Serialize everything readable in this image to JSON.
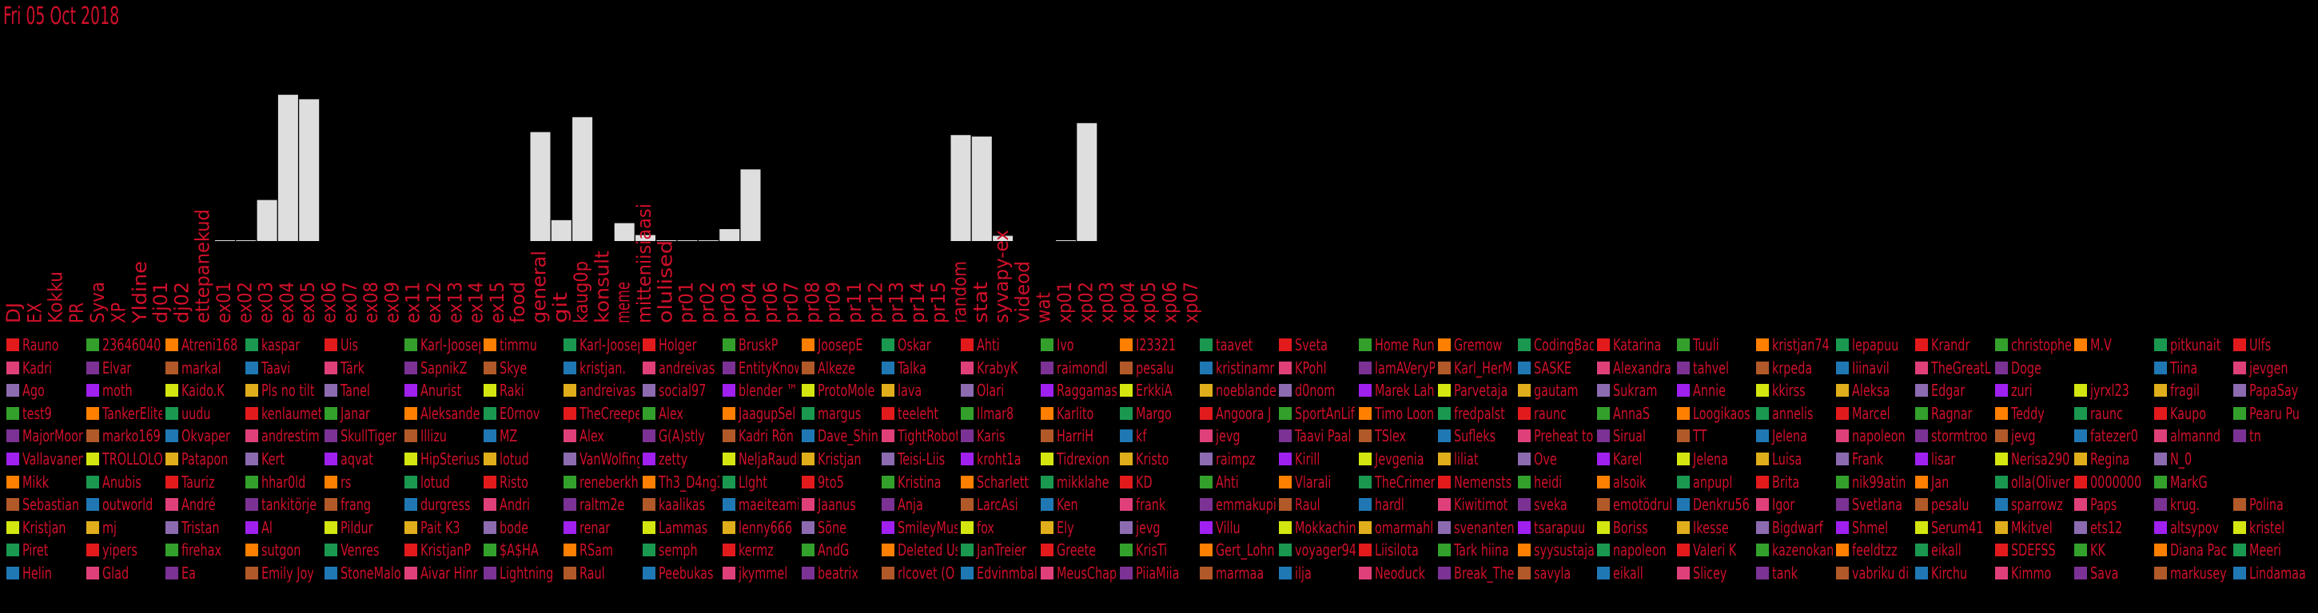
{
  "date_label": "Fri 05 Oct 2018",
  "colors": {
    "background": "#000000",
    "bars": "#dedede",
    "text": "#d0102a",
    "legend_swatches": [
      "#e31a1c",
      "#a020f0",
      "#1f78b4",
      "#33a02c",
      "#d4e610",
      "#e0407a",
      "#ff7f00",
      "#e0ae1b",
      "#7b3294",
      "#1a9850",
      "#8c6bb1",
      "#b15928"
    ]
  },
  "chart_data": {
    "type": "bar",
    "categories": [
      "DJ",
      "EX",
      "Kokku",
      "PR",
      "Syva",
      "XP",
      "Yldine",
      "dj01",
      "dj02",
      "ettepanekud",
      "ex01",
      "ex02",
      "ex03",
      "ex04",
      "ex05",
      "ex06",
      "ex07",
      "ex08",
      "ex09",
      "ex11",
      "ex12",
      "ex13",
      "ex14",
      "ex15",
      "food",
      "general",
      "git",
      "kaug0p",
      "konsult",
      "meme",
      "mitteniisiaasi",
      "olulised",
      "pr01",
      "pr02",
      "pr03",
      "pr04",
      "pr06",
      "pr07",
      "pr08",
      "pr09",
      "pr11",
      "pr12",
      "pr13",
      "pr14",
      "pr15",
      "random",
      "stat",
      "syvapy-ex",
      "videod",
      "wat",
      "xp01",
      "xp02",
      "xp03",
      "xp04",
      "xp05",
      "xp06",
      "xp07"
    ],
    "values": [
      0,
      0,
      0,
      0,
      0,
      0,
      0,
      0,
      0,
      0,
      0.3,
      0.3,
      27.5,
      98,
      95,
      0,
      0,
      0,
      0,
      0,
      0,
      0,
      0,
      0,
      0,
      73,
      14,
      83,
      0,
      12,
      4,
      0.3,
      0.3,
      0.3,
      8,
      48,
      0,
      0,
      0,
      0,
      0,
      0,
      0,
      0,
      0,
      71,
      70,
      3.5,
      0,
      0,
      0.3,
      79,
      0,
      0,
      0,
      0,
      0
    ],
    "ylim": [
      0,
      100
    ]
  },
  "legend": [
    [
      "Rauno",
      "Kadri",
      "Ago",
      "test9",
      "MajorMoore",
      "Vallavanem",
      "Mikk",
      "Sebastian",
      "Kristjan",
      "Piret",
      "Helin"
    ],
    [
      "23646040",
      "Elvar",
      "moth",
      "TankerElite",
      "marko169",
      "TROLLOLOL",
      "Anubis",
      "outworld",
      "mj",
      "yipers",
      "Glad"
    ],
    [
      "Atreni168",
      "markal",
      "Kaido.K",
      "uudu",
      "Okvaper",
      "Patapon",
      "Tauriz",
      "André",
      "Tristan",
      "firehax",
      "Ea"
    ],
    [
      "kaspar",
      "Taavi",
      "Pls no tilt",
      "kenlaumet",
      "andrestim",
      "Kert",
      "hhar0ld",
      "tankitörje",
      "Al",
      "sutgon",
      "Emily Joy"
    ],
    [
      "Uis",
      "Tärk",
      "Tanel",
      "Janar",
      "SkullTiger",
      "aqvat",
      "rs",
      "frang",
      "Pildur",
      "Venres",
      "StoneMalone"
    ],
    [
      "Karl-Joosep",
      "SapnikZ",
      "Anurist",
      "Aleksander",
      "Illizu",
      "HipSterius",
      "lotud",
      "durgress",
      "Pait K3",
      "KristjanP",
      "Aivar Hinr"
    ],
    [
      "timmu",
      "Skye",
      "Raki",
      "E0rnov",
      "MZ",
      "lotud",
      "Risto",
      "Andri",
      "bode",
      "$A$HA",
      "Lightning"
    ],
    [
      "Karl-Joosep",
      "kristjan.",
      "andreivas",
      "TheCreeper",
      "Alex",
      "VanWolfing",
      "reneberkh",
      "raltm2e",
      "renar",
      "RSam",
      "Raul"
    ],
    [
      "Holger",
      "andreivas",
      "social97",
      "Alex",
      "G(A)stly",
      "zetty",
      "Th3_D4ng3r",
      "kaalikas",
      "Lammas",
      "semph",
      "Peebukas"
    ],
    [
      "BruskP",
      "EntityKnown",
      "blender ™",
      "JaagupSel",
      "Kadri Rõn",
      "NeljaRaudl",
      "Llght",
      "maeiteami",
      "lenny666",
      "kermz",
      "jkymmel"
    ],
    [
      "JoosepE",
      "Alkeze",
      "ProtoMole",
      "margus",
      "Dave_Shin",
      "Kristjan",
      "9to5",
      "Jaanus",
      "Sõne",
      "AndG",
      "beatrix"
    ],
    [
      "Oskar",
      "Talka",
      "lava",
      "teeleht",
      "TightRobot",
      "Teisi-Liis",
      "Kristina",
      "Anja",
      "SmileyMus",
      "Deleted Us",
      "rlcovet (O"
    ],
    [
      "Ahti",
      "KrabyK",
      "Olari",
      "Ilmar8",
      "Karis",
      "kroht1a",
      "Scharlett",
      "LarcAsi",
      "fox",
      "JanTreier",
      "Edvinmbal"
    ],
    [
      "Ivo",
      "raimondl",
      "Raggamas",
      "Karlito",
      "HarriH",
      "Tidrexion",
      "mikklahe",
      "Ken",
      "Ely",
      "Greete",
      "MeusChap"
    ],
    [
      "I23321",
      "pesalu",
      "ErkkiA",
      "Margo",
      "kf",
      "Kristo",
      "KD",
      "frank",
      "jevg",
      "KrisTi",
      "PiiaMiia"
    ],
    [
      "taavet",
      "kristinamr",
      "noeblande",
      "Angoora J",
      "jevg",
      "raimpz",
      "Ahti",
      "emmakupi",
      "Villu",
      "Gert_Lohn",
      "marmaa"
    ],
    [
      "Sveta",
      "KPohl",
      "d0nom",
      "SportAnLife",
      "Taavi Paal",
      "Kirill",
      "Vlarali",
      "Raul",
      "Mokkachino",
      "voyager94",
      "ilja"
    ],
    [
      "Home Run",
      "lamAVeryP",
      "Marek Lah",
      "Timo Loon",
      "TSlex",
      "Jevgenia",
      "TheCrimer",
      "hardl",
      "omarmahl",
      "Liisilota",
      "Neoduck"
    ],
    [
      "Gremow",
      "Karl_HerM",
      "Parvetaja",
      "fredpalst",
      "Sufleks",
      "liliat",
      "Nemensts",
      "Kiwitimot",
      "svenanten",
      "Tark hiina",
      "Break_The"
    ],
    [
      "CodingBad",
      "SASKE",
      "gautam",
      "raunc",
      "Preheat to",
      "Ove",
      "heidi",
      "sveka",
      "tsarapuu",
      "syysustaja",
      "savyla"
    ],
    [
      "Katarina",
      "Alexandra",
      "Sukram",
      "AnnaS",
      "Sirual",
      "Karel",
      "alsoik",
      "emotödrul",
      "Boriss",
      "napoleon",
      "eikall"
    ],
    [
      "Tuuli",
      "tahvel",
      "Annie",
      "Loogikaos",
      "TT",
      "Jelena",
      "anpupl",
      "Denkru56",
      "Ikesse",
      "Valeri K",
      "Slicey"
    ],
    [
      "kristjan74",
      "krpeda",
      "kkirss",
      "annelis",
      "Jelena",
      "Luisa",
      "Brita",
      "Igor",
      "Bigdwarf",
      "kazenokan",
      "tank"
    ],
    [
      "lepapuu",
      "Iiinavil",
      "Aleksa",
      "Marcel",
      "napoleon",
      "Frank",
      "nik99atin",
      "Svetlana",
      "Shmel",
      "feeldtzz",
      "vabriku di"
    ],
    [
      "Krandr",
      "TheGreatL",
      "Edgar",
      "Ragnar",
      "stormtroo",
      "lisar",
      "Jan",
      "pesalu",
      "Serum41",
      "eikall",
      "Kirchu"
    ],
    [
      "christophe",
      "Doge",
      "zuri",
      "Teddy",
      "jevg",
      "Nerisa290",
      "olla(Oliver",
      "sparrowz",
      "Mkitvel",
      "SDEFSS",
      "Kimmo"
    ],
    [
      "M.V",
      "",
      "jyrxl23",
      "raunc",
      "fatezer0",
      "Regina",
      "0000000",
      "Paps",
      "ets12",
      "KK",
      "Sava"
    ],
    [
      "pitkunait",
      "Tiina",
      "fragil",
      "Kaupo",
      "almannd",
      "N_0",
      "MarkG",
      "krug.",
      "altsypov",
      "Diana Pac",
      "markusey"
    ],
    [
      "Ulfs",
      "jevgen",
      "PapaSay",
      "Pearu Pu",
      "tn",
      "",
      "",
      "Polina",
      "kristel",
      "Meeri",
      "Lindamaa"
    ]
  ]
}
